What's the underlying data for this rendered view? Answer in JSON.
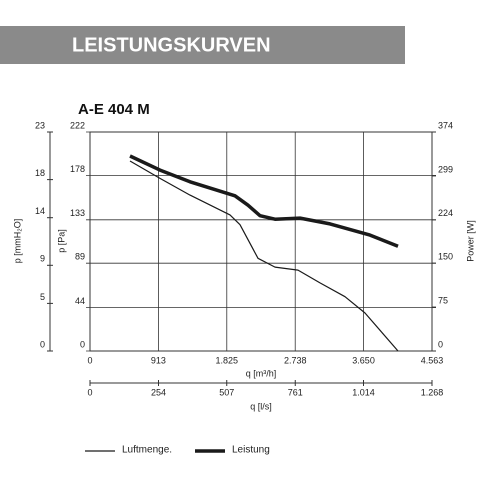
{
  "header": {
    "title": "LEISTUNGSKURVEN",
    "model": "A-E 404 M"
  },
  "chart_data": {
    "type": "line",
    "xlabel": "q [m³/h]",
    "xlim": [
      0,
      4563
    ],
    "xticks": [
      0,
      913,
      {
        "value": 1825,
        "label": "1.825"
      },
      {
        "value": 2738,
        "label": "2.738"
      },
      {
        "value": 3650,
        "label": "3.650"
      },
      {
        "value": 4563,
        "label": "4.563"
      }
    ],
    "x2label": "q [l/s]",
    "x2lim": [
      0,
      1268
    ],
    "x2ticks": [
      0,
      254,
      507,
      761,
      {
        "value": 1014,
        "label": "1.014"
      },
      {
        "value": 1268,
        "label": "1.268"
      }
    ],
    "ylabel": "p [Pa]",
    "ylim": [
      0,
      222
    ],
    "yticks": [
      0,
      44,
      89,
      133,
      178,
      222
    ],
    "y3label": "p [mmH₂O]",
    "y3lim": [
      0,
      23
    ],
    "y3ticks": [
      0,
      5,
      9,
      14,
      18,
      23
    ],
    "y2label": "Power [W]",
    "y2lim": [
      0,
      374
    ],
    "y2ticks": [
      0,
      75,
      150,
      224,
      299,
      374
    ],
    "grid": true,
    "series": [
      {
        "name": "Luftmenge.",
        "color": "#1a1a1a",
        "line_width": 1.2,
        "x": [
          534,
          934,
          1334,
          1868,
          2001,
          2241,
          2468,
          2775,
          3069,
          3402,
          3669,
          4109
        ],
        "values": [
          192.6,
          175,
          158,
          138,
          128,
          94,
          85,
          82,
          69,
          55,
          38.5,
          0
        ]
      },
      {
        "name": "Leistung",
        "color": "#1a1a1a",
        "line_width": 3.5,
        "axis": "y2",
        "x": [
          534,
          934,
          1334,
          1935,
          2108,
          2268,
          2468,
          2802,
          3202,
          3736,
          4109
        ],
        "values": [
          333,
          309,
          289,
          265,
          249,
          231,
          225,
          227,
          217,
          198,
          179
        ]
      }
    ]
  }
}
